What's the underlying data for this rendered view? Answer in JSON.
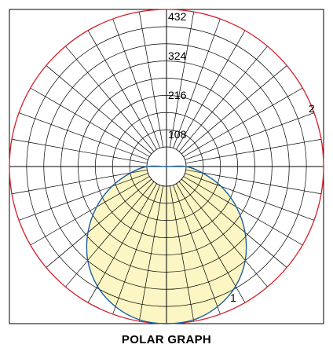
{
  "chart_data": {
    "type": "polar",
    "title": "POLAR GRAPH",
    "radial_ticks": [
      108,
      216,
      324,
      432
    ],
    "r_inner": 54,
    "r_max": 432,
    "angular_step_deg": 10,
    "grid": true,
    "series": [
      {
        "name": "2",
        "description_color": "#d0202a",
        "points": [
          {
            "angle": 0,
            "r": 432
          },
          {
            "angle": 90,
            "r": 432
          },
          {
            "angle": 180,
            "r": 432
          },
          {
            "angle": 270,
            "r": 432
          }
        ]
      },
      {
        "name": "1",
        "description_color": "#1b5e9e",
        "fill": "#fbf6c4",
        "points": [
          {
            "angle": 0,
            "r": 432
          },
          {
            "angle": 10,
            "r": 428
          },
          {
            "angle": 20,
            "r": 410
          },
          {
            "angle": 30,
            "r": 380
          },
          {
            "angle": 40,
            "r": 337
          },
          {
            "angle": 50,
            "r": 282
          },
          {
            "angle": 60,
            "r": 222
          },
          {
            "angle": 70,
            "r": 160
          },
          {
            "angle": 80,
            "r": 100
          },
          {
            "angle": 90,
            "r": 54
          }
        ]
      }
    ],
    "colors": {
      "grid": "#000000",
      "outer_circle": "#d0202a",
      "curve": "#1b5e9e",
      "fill": "#fbf6c4"
    }
  }
}
